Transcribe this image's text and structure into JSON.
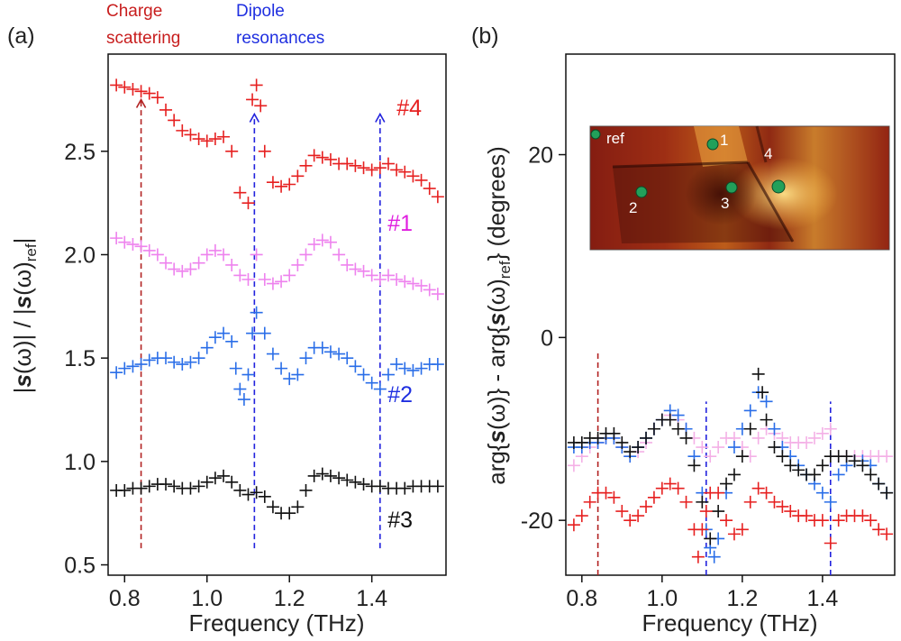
{
  "chart_data": [
    {
      "panel_label": "(a)",
      "type": "scatter",
      "marker": "+",
      "xlabel": "Frequency (THz)",
      "ylabel": "|s(ω)| / |s(ω)ref|",
      "ylabel_parts": {
        "abs_open": "|",
        "s": "s",
        "omega": "(ω)",
        "mid": "| / |",
        "omega_ref": "(ω)",
        "sub": "ref",
        "abs_close": "|"
      },
      "xlim": [
        0.76,
        1.58
      ],
      "ylim": [
        0.45,
        2.97
      ],
      "xticks": [
        "0.8",
        "1.0",
        "1.2",
        "1.4"
      ],
      "xtick_values": [
        0.8,
        1.0,
        1.2,
        1.4
      ],
      "yticks": [
        "0.5",
        "1.0",
        "1.5",
        "2.0",
        "2.5"
      ],
      "ytick_values": [
        0.5,
        1.0,
        1.5,
        2.0,
        2.5
      ],
      "annotations": {
        "charge_line1": "Charge",
        "charge_line2": "scattering",
        "dipole_line1": "Dipole",
        "dipole_line2": "resonances"
      },
      "marker_lines": [
        {
          "x": 0.84,
          "y_from": 0.58,
          "y_to": 2.75,
          "color": "#b22222"
        },
        {
          "x": 1.115,
          "y_from": 0.58,
          "y_to": 2.68,
          "color": "#2222dd"
        },
        {
          "x": 1.42,
          "y_from": 0.58,
          "y_to": 2.68,
          "color": "#2222dd"
        }
      ],
      "series": [
        {
          "name": "#4",
          "color": "#e62020",
          "x": [
            0.78,
            0.8,
            0.82,
            0.84,
            0.86,
            0.88,
            0.9,
            0.92,
            0.94,
            0.96,
            0.98,
            1.0,
            1.02,
            1.04,
            1.06,
            1.08,
            1.1,
            1.11,
            1.12,
            1.13,
            1.14,
            1.16,
            1.18,
            1.2,
            1.22,
            1.24,
            1.26,
            1.28,
            1.3,
            1.32,
            1.34,
            1.36,
            1.38,
            1.4,
            1.42,
            1.44,
            1.46,
            1.48,
            1.5,
            1.52,
            1.54,
            1.56
          ],
          "y": [
            2.82,
            2.81,
            2.8,
            2.79,
            2.78,
            2.76,
            2.7,
            2.65,
            2.6,
            2.58,
            2.56,
            2.55,
            2.56,
            2.57,
            2.5,
            2.3,
            2.25,
            2.75,
            2.82,
            2.72,
            2.5,
            2.35,
            2.33,
            2.34,
            2.38,
            2.43,
            2.48,
            2.47,
            2.46,
            2.44,
            2.44,
            2.43,
            2.42,
            2.41,
            2.42,
            2.44,
            2.41,
            2.4,
            2.38,
            2.36,
            2.32,
            2.28
          ]
        },
        {
          "name": "#1",
          "color": "#ee82ee",
          "x": [
            0.78,
            0.8,
            0.82,
            0.84,
            0.86,
            0.88,
            0.9,
            0.92,
            0.94,
            0.96,
            0.98,
            1.0,
            1.02,
            1.04,
            1.06,
            1.08,
            1.1,
            1.12,
            1.14,
            1.16,
            1.18,
            1.2,
            1.22,
            1.24,
            1.26,
            1.28,
            1.3,
            1.32,
            1.34,
            1.36,
            1.38,
            1.4,
            1.42,
            1.44,
            1.46,
            1.48,
            1.5,
            1.52,
            1.54,
            1.56
          ],
          "y": [
            2.08,
            2.06,
            2.05,
            2.04,
            2.02,
            2.0,
            1.96,
            1.93,
            1.92,
            1.93,
            1.96,
            2.0,
            2.02,
            2.0,
            1.95,
            1.9,
            1.88,
            2.0,
            1.88,
            1.86,
            1.87,
            1.9,
            1.95,
            2.0,
            2.05,
            2.07,
            2.06,
            2.0,
            1.95,
            1.93,
            1.92,
            1.9,
            1.88,
            1.9,
            1.88,
            1.87,
            1.86,
            1.85,
            1.83,
            1.81
          ]
        },
        {
          "name": "#2",
          "color": "#2a6ee8",
          "x": [
            0.78,
            0.8,
            0.82,
            0.84,
            0.86,
            0.88,
            0.9,
            0.92,
            0.94,
            0.96,
            0.98,
            1.0,
            1.02,
            1.04,
            1.06,
            1.07,
            1.08,
            1.09,
            1.1,
            1.11,
            1.12,
            1.14,
            1.16,
            1.18,
            1.2,
            1.22,
            1.24,
            1.26,
            1.28,
            1.3,
            1.32,
            1.34,
            1.36,
            1.38,
            1.4,
            1.42,
            1.44,
            1.46,
            1.48,
            1.5,
            1.52,
            1.54,
            1.56
          ],
          "y": [
            1.43,
            1.45,
            1.46,
            1.47,
            1.49,
            1.5,
            1.5,
            1.48,
            1.47,
            1.48,
            1.5,
            1.55,
            1.6,
            1.62,
            1.58,
            1.45,
            1.35,
            1.3,
            1.42,
            1.62,
            1.72,
            1.62,
            1.52,
            1.45,
            1.4,
            1.42,
            1.5,
            1.55,
            1.55,
            1.53,
            1.52,
            1.5,
            1.46,
            1.42,
            1.38,
            1.35,
            1.42,
            1.47,
            1.45,
            1.44,
            1.45,
            1.47,
            1.47
          ]
        },
        {
          "name": "#3",
          "color": "#111111",
          "x": [
            0.78,
            0.8,
            0.82,
            0.84,
            0.86,
            0.88,
            0.9,
            0.92,
            0.94,
            0.96,
            0.98,
            1.0,
            1.02,
            1.04,
            1.06,
            1.08,
            1.1,
            1.12,
            1.14,
            1.16,
            1.18,
            1.2,
            1.22,
            1.24,
            1.26,
            1.28,
            1.3,
            1.32,
            1.34,
            1.36,
            1.38,
            1.4,
            1.42,
            1.44,
            1.46,
            1.48,
            1.5,
            1.52,
            1.54,
            1.56
          ],
          "y": [
            0.86,
            0.86,
            0.87,
            0.87,
            0.88,
            0.89,
            0.89,
            0.88,
            0.87,
            0.87,
            0.88,
            0.9,
            0.92,
            0.93,
            0.9,
            0.86,
            0.84,
            0.85,
            0.83,
            0.78,
            0.75,
            0.75,
            0.78,
            0.86,
            0.93,
            0.94,
            0.93,
            0.92,
            0.91,
            0.9,
            0.89,
            0.88,
            0.88,
            0.87,
            0.87,
            0.87,
            0.88,
            0.88,
            0.88,
            0.88
          ]
        }
      ]
    },
    {
      "panel_label": "(b)",
      "type": "scatter",
      "marker": "+",
      "xlabel": "Frequency (THz)",
      "ylabel": "arg{s(ω)} - arg{s(ω)ref} (degrees)",
      "ylabel_parts": {
        "arg1": "arg{",
        "s": "s",
        "omega": "(ω)",
        "mid": "} - arg{",
        "omega_ref": "(ω)",
        "sub": "ref",
        "tail": "} (degrees)"
      },
      "xlim": [
        0.76,
        1.58
      ],
      "ylim": [
        -26,
        31
      ],
      "xticks": [
        "0.8",
        "1.0",
        "1.2",
        "1.4"
      ],
      "xtick_values": [
        0.8,
        1.0,
        1.2,
        1.4
      ],
      "yticks": [
        "-20",
        "0",
        "20"
      ],
      "ytick_values": [
        -20,
        0,
        20
      ],
      "marker_lines": [
        {
          "x": 0.84,
          "y_from": -26,
          "y_to": -1.5,
          "color": "#b22222"
        },
        {
          "x": 1.11,
          "y_from": -26,
          "y_to": -7,
          "color": "#2222dd"
        },
        {
          "x": 1.42,
          "y_from": -26,
          "y_to": -7,
          "color": "#2222dd"
        }
      ],
      "inset": {
        "labels": [
          "ref",
          "1",
          "2",
          "3",
          "4"
        ],
        "points": [
          {
            "label": "ref"
          },
          {
            "label": "1"
          },
          {
            "label": "2"
          },
          {
            "label": "3"
          },
          {
            "label": "4"
          }
        ],
        "marker_color": "#22a05a"
      },
      "series": [
        {
          "name": "#1",
          "color": "#f4b0e6",
          "x": [
            0.78,
            0.8,
            0.82,
            0.84,
            0.86,
            0.88,
            0.9,
            0.92,
            0.94,
            0.96,
            0.98,
            1.0,
            1.02,
            1.04,
            1.06,
            1.08,
            1.1,
            1.12,
            1.14,
            1.16,
            1.18,
            1.2,
            1.22,
            1.24,
            1.26,
            1.28,
            1.3,
            1.32,
            1.34,
            1.36,
            1.38,
            1.4,
            1.42,
            1.44,
            1.46,
            1.48,
            1.5,
            1.52,
            1.54,
            1.56
          ],
          "y": [
            -14,
            -13,
            -12,
            -11.5,
            -11,
            -11,
            -12,
            -13,
            -12.5,
            -11.5,
            -10,
            -9,
            -8.5,
            -9,
            -10,
            -11,
            -12,
            -13,
            -12,
            -11,
            -11,
            -12,
            -13,
            -11,
            -10,
            -10.5,
            -11,
            -11.5,
            -11.5,
            -11.5,
            -11,
            -10.5,
            -10,
            -13,
            -13,
            -13,
            -13,
            -13,
            -13,
            -13
          ]
        },
        {
          "name": "#2",
          "color": "#2a6ee8",
          "x": [
            0.78,
            0.8,
            0.82,
            0.84,
            0.86,
            0.88,
            0.9,
            0.92,
            0.94,
            0.96,
            0.98,
            1.0,
            1.02,
            1.04,
            1.06,
            1.08,
            1.1,
            1.11,
            1.12,
            1.13,
            1.14,
            1.16,
            1.18,
            1.2,
            1.22,
            1.24,
            1.26,
            1.28,
            1.3,
            1.32,
            1.34,
            1.36,
            1.38,
            1.4,
            1.42,
            1.44,
            1.46,
            1.48,
            1.5,
            1.52,
            1.54,
            1.56
          ],
          "y": [
            -12,
            -12,
            -11.5,
            -11.5,
            -11,
            -11,
            -12,
            -13,
            -12,
            -11,
            -10,
            -9,
            -8,
            -8.5,
            -10,
            -13,
            -17,
            -21,
            -23,
            -24,
            -22,
            -17,
            -12,
            -10,
            -8,
            -6,
            -7,
            -10,
            -12,
            -13,
            -14,
            -15,
            -16,
            -17,
            -18,
            -15,
            -14,
            -13.5,
            -13.5,
            -14,
            -16,
            -17
          ]
        },
        {
          "name": "#3",
          "color": "#111111",
          "x": [
            0.78,
            0.8,
            0.82,
            0.84,
            0.86,
            0.88,
            0.9,
            0.92,
            0.94,
            0.96,
            0.98,
            1.0,
            1.02,
            1.04,
            1.06,
            1.08,
            1.1,
            1.12,
            1.14,
            1.16,
            1.18,
            1.2,
            1.22,
            1.24,
            1.25,
            1.26,
            1.28,
            1.3,
            1.32,
            1.34,
            1.36,
            1.38,
            1.4,
            1.42,
            1.44,
            1.46,
            1.48,
            1.5,
            1.52,
            1.54,
            1.56
          ],
          "y": [
            -11.5,
            -11.5,
            -11,
            -11,
            -10.5,
            -10.5,
            -11.5,
            -12.5,
            -12,
            -11,
            -10,
            -9,
            -9,
            -10,
            -11,
            -14,
            -18,
            -22,
            -19,
            -16,
            -15,
            -13,
            -10,
            -4,
            -6,
            -9,
            -12,
            -13,
            -14,
            -14.5,
            -15,
            -15,
            -14,
            -13,
            -13,
            -13,
            -13.5,
            -14,
            -15,
            -16,
            -17
          ]
        },
        {
          "name": "#4",
          "color": "#e62020",
          "x": [
            0.78,
            0.8,
            0.82,
            0.84,
            0.86,
            0.88,
            0.9,
            0.92,
            0.94,
            0.96,
            0.98,
            1.0,
            1.02,
            1.04,
            1.06,
            1.08,
            1.09,
            1.1,
            1.11,
            1.12,
            1.14,
            1.16,
            1.18,
            1.2,
            1.22,
            1.24,
            1.26,
            1.28,
            1.3,
            1.32,
            1.34,
            1.36,
            1.38,
            1.4,
            1.42,
            1.44,
            1.46,
            1.48,
            1.5,
            1.52,
            1.54,
            1.56
          ],
          "y": [
            -20.5,
            -19.5,
            -18,
            -17,
            -17,
            -17.5,
            -19,
            -20,
            -19.5,
            -18.5,
            -17.5,
            -16.5,
            -16,
            -16.5,
            -18,
            -21,
            -24,
            -21,
            -19,
            -17,
            -17,
            -20,
            -21.5,
            -21,
            -18,
            -16.5,
            -17,
            -18,
            -18.5,
            -19,
            -19.5,
            -19.5,
            -20,
            -20,
            -22.5,
            -20,
            -19.5,
            -19.5,
            -19.5,
            -20,
            -21,
            -21.5
          ]
        }
      ]
    }
  ]
}
